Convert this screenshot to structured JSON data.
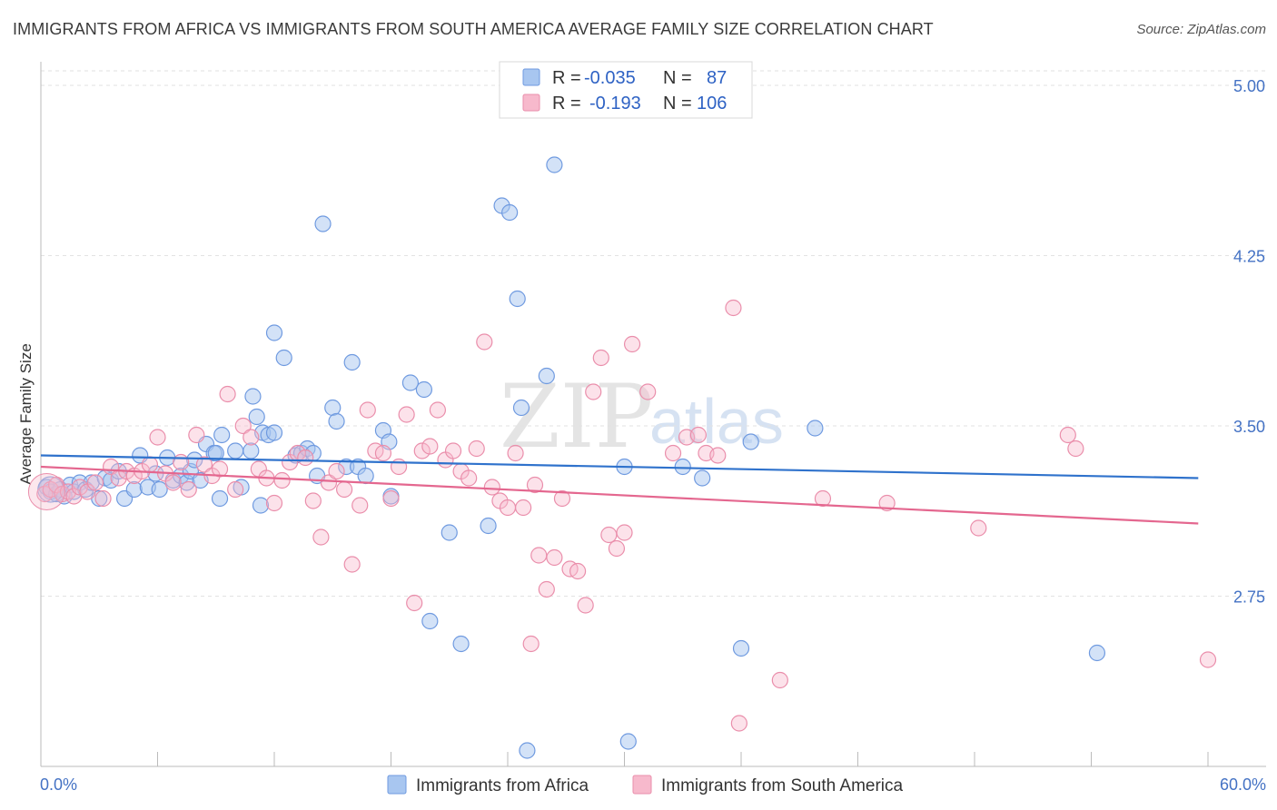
{
  "title": "IMMIGRANTS FROM AFRICA VS IMMIGRANTS FROM SOUTH AMERICA AVERAGE FAMILY SIZE CORRELATION CHART",
  "source": "Source: ZipAtlas.com",
  "watermark": {
    "zip": "ZIP",
    "atlas": "atlas"
  },
  "legend": {
    "r_label": "R =",
    "n_label": "N =",
    "rows": [
      {
        "r": "-0.035",
        "n": "87",
        "color": "#a8c6f0",
        "stroke": "#6f9ae0"
      },
      {
        "r": "-0.193",
        "n": "106",
        "color": "#f7b9cc",
        "stroke": "#ea8eab"
      }
    ]
  },
  "chart_data": {
    "type": "scatter",
    "title": "IMMIGRANTS FROM AFRICA VS IMMIGRANTS FROM SOUTH AMERICA AVERAGE FAMILY SIZE CORRELATION CHART",
    "xlabel": "",
    "ylabel": "Average Family Size",
    "xlim": [
      0,
      60
    ],
    "ylim": [
      2.0,
      5.12
    ],
    "x_tick_labels": [
      "0.0%",
      "60.0%"
    ],
    "y_ticks": [
      2.75,
      3.5,
      4.25,
      5.0
    ],
    "y_tick_labels": [
      "2.75",
      "3.50",
      "4.25",
      "5.00"
    ],
    "grid": "horizontal-dashed",
    "legend_position": "top-center",
    "series": [
      {
        "name": "Immigrants from Africa",
        "color": "#6f9ae0",
        "fill": "#a8c6f0",
        "trend": {
          "x": [
            0,
            59.5
          ],
          "y": [
            3.37,
            3.27
          ]
        },
        "points": [
          [
            0.3,
            3.23
          ],
          [
            0.5,
            3.21
          ],
          [
            0.8,
            3.2
          ],
          [
            1.0,
            3.22
          ],
          [
            1.2,
            3.19
          ],
          [
            1.5,
            3.24
          ],
          [
            1.7,
            3.21
          ],
          [
            2.0,
            3.25
          ],
          [
            2.3,
            3.22
          ],
          [
            2.6,
            3.25
          ],
          [
            3.0,
            3.18
          ],
          [
            3.3,
            3.27
          ],
          [
            3.6,
            3.26
          ],
          [
            4.0,
            3.3
          ],
          [
            4.3,
            3.18
          ],
          [
            4.8,
            3.22
          ],
          [
            5.1,
            3.37
          ],
          [
            5.5,
            3.23
          ],
          [
            5.9,
            3.29
          ],
          [
            6.1,
            3.22
          ],
          [
            6.5,
            3.36
          ],
          [
            6.8,
            3.26
          ],
          [
            7.2,
            3.28
          ],
          [
            7.5,
            3.25
          ],
          [
            7.7,
            3.3
          ],
          [
            7.9,
            3.35
          ],
          [
            8.2,
            3.26
          ],
          [
            8.5,
            3.42
          ],
          [
            8.9,
            3.38
          ],
          [
            9.0,
            3.38
          ],
          [
            9.2,
            3.18
          ],
          [
            9.3,
            3.46
          ],
          [
            10.0,
            3.39
          ],
          [
            10.3,
            3.23
          ],
          [
            10.8,
            3.39
          ],
          [
            10.9,
            3.63
          ],
          [
            11.1,
            3.54
          ],
          [
            11.3,
            3.15
          ],
          [
            11.4,
            3.47
          ],
          [
            11.7,
            3.46
          ],
          [
            12.0,
            3.47
          ],
          [
            12.0,
            3.91
          ],
          [
            12.5,
            3.8
          ],
          [
            13.1,
            3.37
          ],
          [
            13.4,
            3.38
          ],
          [
            13.7,
            3.4
          ],
          [
            14.0,
            3.38
          ],
          [
            14.2,
            3.28
          ],
          [
            14.5,
            4.39
          ],
          [
            15.0,
            3.58
          ],
          [
            15.2,
            3.52
          ],
          [
            15.7,
            3.32
          ],
          [
            16.0,
            3.78
          ],
          [
            16.3,
            3.32
          ],
          [
            16.7,
            3.28
          ],
          [
            17.6,
            3.48
          ],
          [
            17.9,
            3.43
          ],
          [
            18.0,
            3.19
          ],
          [
            19.0,
            3.69
          ],
          [
            19.7,
            3.66
          ],
          [
            20.0,
            2.64
          ],
          [
            21.0,
            3.03
          ],
          [
            21.6,
            2.54
          ],
          [
            23.0,
            3.06
          ],
          [
            23.7,
            4.47
          ],
          [
            24.1,
            4.44
          ],
          [
            24.5,
            4.06
          ],
          [
            24.7,
            3.58
          ],
          [
            25.0,
            2.07
          ],
          [
            26.0,
            3.72
          ],
          [
            26.4,
            4.65
          ],
          [
            30.0,
            3.32
          ],
          [
            30.2,
            2.11
          ],
          [
            33.0,
            3.32
          ],
          [
            34.0,
            3.27
          ],
          [
            36.0,
            2.52
          ],
          [
            36.5,
            3.43
          ],
          [
            39.8,
            3.49
          ],
          [
            54.3,
            2.5
          ]
        ]
      },
      {
        "name": "Immigrants from South America",
        "color": "#ea8eab",
        "fill": "#f7b9cc",
        "trend": {
          "x": [
            0,
            59.5
          ],
          "y": [
            3.32,
            3.07
          ]
        },
        "points": [
          [
            0.2,
            3.2
          ],
          [
            0.5,
            3.22
          ],
          [
            0.8,
            3.24
          ],
          [
            1.1,
            3.2
          ],
          [
            1.4,
            3.21
          ],
          [
            1.7,
            3.19
          ],
          [
            2.0,
            3.23
          ],
          [
            2.4,
            3.21
          ],
          [
            2.8,
            3.25
          ],
          [
            3.2,
            3.18
          ],
          [
            3.6,
            3.32
          ],
          [
            4.0,
            3.27
          ],
          [
            4.4,
            3.3
          ],
          [
            4.8,
            3.28
          ],
          [
            5.2,
            3.3
          ],
          [
            5.6,
            3.33
          ],
          [
            6.0,
            3.45
          ],
          [
            6.4,
            3.29
          ],
          [
            6.8,
            3.25
          ],
          [
            7.2,
            3.34
          ],
          [
            7.6,
            3.22
          ],
          [
            8.0,
            3.46
          ],
          [
            8.4,
            3.33
          ],
          [
            8.8,
            3.28
          ],
          [
            9.2,
            3.31
          ],
          [
            9.6,
            3.64
          ],
          [
            10.0,
            3.22
          ],
          [
            10.4,
            3.5
          ],
          [
            10.8,
            3.45
          ],
          [
            11.2,
            3.31
          ],
          [
            11.6,
            3.27
          ],
          [
            12.0,
            3.16
          ],
          [
            12.4,
            3.26
          ],
          [
            12.8,
            3.34
          ],
          [
            13.2,
            3.38
          ],
          [
            13.6,
            3.36
          ],
          [
            14.0,
            3.17
          ],
          [
            14.4,
            3.01
          ],
          [
            14.8,
            3.25
          ],
          [
            15.2,
            3.3
          ],
          [
            15.6,
            3.22
          ],
          [
            16.0,
            2.89
          ],
          [
            16.4,
            3.15
          ],
          [
            16.8,
            3.57
          ],
          [
            17.2,
            3.39
          ],
          [
            17.6,
            3.38
          ],
          [
            18.0,
            3.18
          ],
          [
            18.4,
            3.32
          ],
          [
            18.8,
            3.55
          ],
          [
            19.2,
            2.72
          ],
          [
            19.6,
            3.39
          ],
          [
            20.0,
            3.41
          ],
          [
            20.4,
            3.57
          ],
          [
            20.8,
            3.35
          ],
          [
            21.2,
            3.39
          ],
          [
            21.6,
            3.3
          ],
          [
            22.0,
            3.27
          ],
          [
            22.4,
            3.4
          ],
          [
            22.8,
            3.87
          ],
          [
            23.2,
            3.23
          ],
          [
            23.6,
            3.17
          ],
          [
            24.0,
            3.14
          ],
          [
            24.4,
            3.38
          ],
          [
            24.8,
            3.14
          ],
          [
            25.2,
            2.54
          ],
          [
            25.4,
            3.24
          ],
          [
            25.6,
            2.93
          ],
          [
            26.0,
            2.78
          ],
          [
            26.4,
            2.92
          ],
          [
            26.8,
            3.18
          ],
          [
            27.2,
            2.87
          ],
          [
            27.6,
            2.86
          ],
          [
            28.0,
            2.71
          ],
          [
            28.4,
            3.65
          ],
          [
            28.8,
            3.8
          ],
          [
            29.2,
            3.02
          ],
          [
            29.6,
            2.96
          ],
          [
            30.0,
            3.03
          ],
          [
            30.4,
            3.86
          ],
          [
            31.2,
            3.65
          ],
          [
            32.5,
            3.38
          ],
          [
            33.2,
            3.45
          ],
          [
            33.8,
            3.46
          ],
          [
            34.2,
            3.38
          ],
          [
            34.8,
            3.37
          ],
          [
            35.6,
            4.02
          ],
          [
            35.9,
            2.19
          ],
          [
            38.0,
            2.38
          ],
          [
            40.2,
            3.18
          ],
          [
            43.5,
            3.16
          ],
          [
            48.2,
            3.05
          ],
          [
            52.8,
            3.46
          ],
          [
            53.2,
            3.4
          ],
          [
            60.0,
            2.47
          ]
        ]
      }
    ]
  }
}
